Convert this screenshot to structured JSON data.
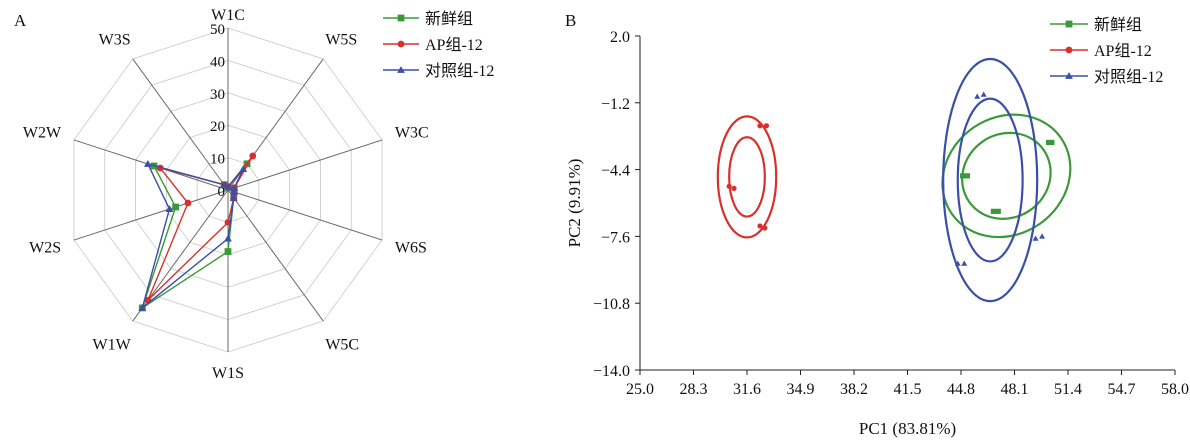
{
  "chart_data": [
    {
      "panel": "A",
      "type": "radar",
      "axes": [
        "W1C",
        "W5S",
        "W3C",
        "W6S",
        "W5C",
        "W1S",
        "W1W",
        "W2S",
        "W2W",
        "W3S"
      ],
      "rticks": [
        "0",
        "10",
        "20",
        "30",
        "40",
        "50"
      ],
      "rmax": 50,
      "legend_position": "top-right",
      "series": [
        {
          "name": "新鲜组",
          "color": "#3a9a3a",
          "marker": "square",
          "values": [
            1,
            10,
            2,
            2,
            3,
            19,
            45,
            17,
            24,
            2
          ]
        },
        {
          "name": "AP组-12",
          "color": "#d9302c",
          "marker": "circle",
          "values": [
            1,
            13,
            2,
            2,
            3,
            10,
            42,
            13,
            22,
            2
          ]
        },
        {
          "name": "对照组-12",
          "color": "#3a4fa8",
          "marker": "triangle",
          "values": [
            1,
            8,
            2,
            2,
            3,
            15,
            45,
            19,
            26,
            2
          ]
        }
      ]
    },
    {
      "panel": "B",
      "type": "scatter",
      "xlabel": "PC1 (83.81%)",
      "ylabel": "PC2 (9.91%)",
      "xlim": [
        25.0,
        58.0
      ],
      "ylim": [
        -14.0,
        2.0
      ],
      "xticks": [
        "25.0",
        "28.3",
        "31.6",
        "34.9",
        "38.2",
        "41.5",
        "44.8",
        "48.1",
        "51.4",
        "54.7",
        "58.0"
      ],
      "yticks": [
        "2.0",
        "−1.2",
        "−4.4",
        "−7.6",
        "−10.8",
        "−14.0"
      ],
      "legend_position": "top-right",
      "series": [
        {
          "name": "新鲜组",
          "color": "#3a9a3a",
          "marker": "square",
          "points": [
            [
              50.2,
              -3.1
            ],
            [
              50.4,
              -3.1
            ],
            [
              46.8,
              -6.4
            ],
            [
              47.1,
              -6.4
            ],
            [
              44.9,
              -4.7
            ],
            [
              45.2,
              -4.7
            ]
          ],
          "ellipses": [
            {
              "cx": 47.6,
              "cy": -4.7,
              "rx": 2.8,
              "ry": 2.0,
              "rot": -35
            },
            {
              "cx": 47.6,
              "cy": -4.7,
              "rx": 4.1,
              "ry": 2.8,
              "rot": -35
            }
          ]
        },
        {
          "name": "AP组-12",
          "color": "#d9302c",
          "marker": "circle",
          "points": [
            [
              32.4,
              -2.3
            ],
            [
              32.8,
              -2.3
            ],
            [
              32.4,
              -7.1
            ],
            [
              32.7,
              -7.2
            ],
            [
              30.5,
              -5.2
            ],
            [
              30.8,
              -5.3
            ]
          ],
          "ellipses": [
            {
              "cx": 31.6,
              "cy": -4.75,
              "rx": 1.1,
              "ry": 1.9,
              "rot": 0
            },
            {
              "cx": 31.6,
              "cy": -4.75,
              "rx": 1.8,
              "ry": 2.9,
              "rot": 0
            }
          ]
        },
        {
          "name": "对照组-12",
          "color": "#3a4fa8",
          "marker": "triangle",
          "points": [
            [
              45.8,
              -0.9
            ],
            [
              46.2,
              -0.8
            ],
            [
              49.4,
              -7.7
            ],
            [
              49.8,
              -7.6
            ],
            [
              44.6,
              -8.9
            ],
            [
              45.0,
              -8.9
            ]
          ],
          "ellipses": [
            {
              "cx": 46.6,
              "cy": -4.9,
              "rx": 2.0,
              "ry": 3.9,
              "rot": 0
            },
            {
              "cx": 46.6,
              "cy": -4.9,
              "rx": 2.9,
              "ry": 5.8,
              "rot": 0
            }
          ]
        }
      ]
    }
  ]
}
